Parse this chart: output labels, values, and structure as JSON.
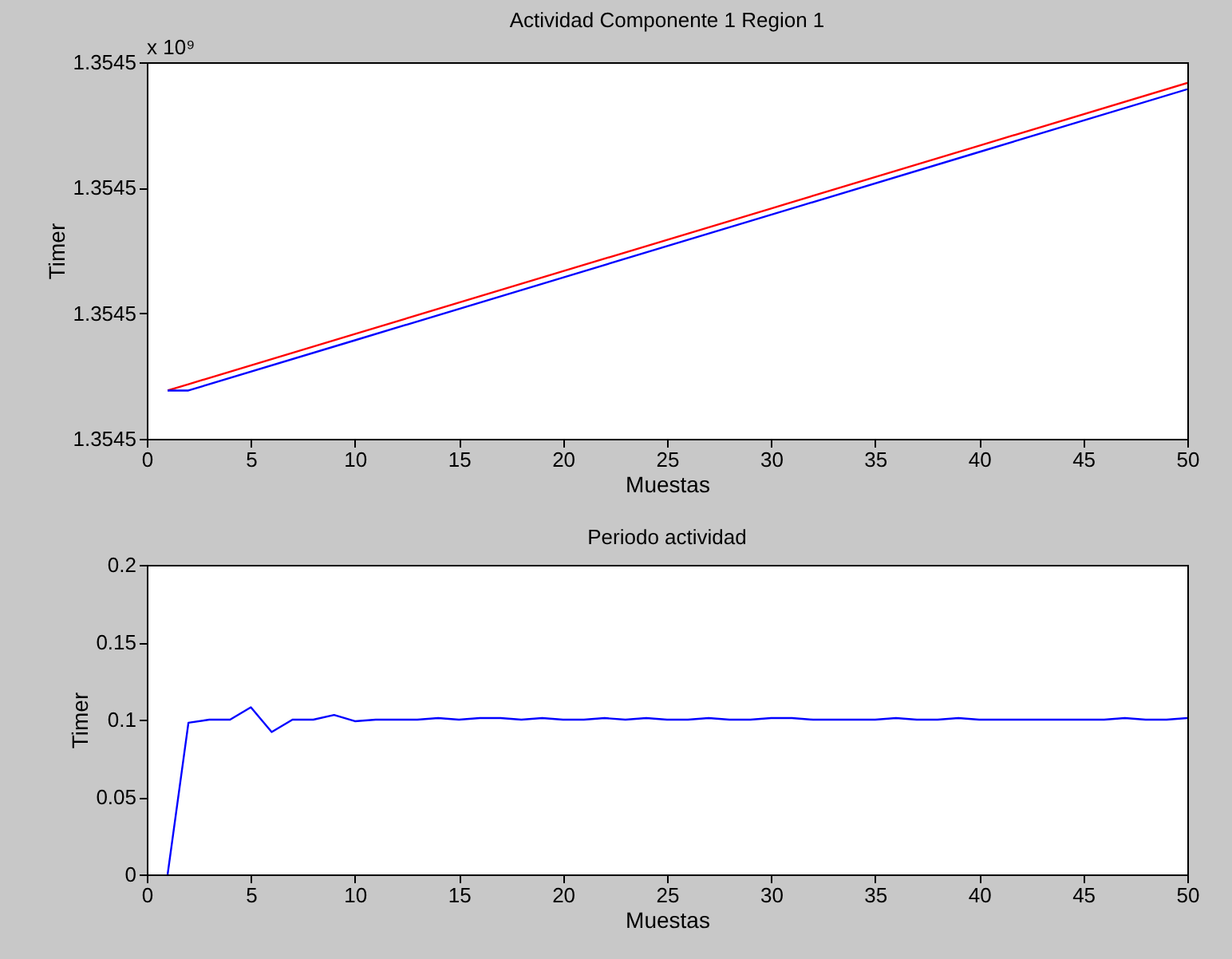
{
  "chart_data": [
    {
      "type": "line",
      "title": "Actividad Componente 1 Region 1",
      "xlabel": "Muestas",
      "ylabel": "Timer",
      "annotations": [
        "x 10⁹"
      ],
      "marker": "none",
      "line_style": "solid",
      "grid": false,
      "xlim": [
        0,
        50
      ],
      "xticks": [
        0,
        5,
        10,
        15,
        20,
        25,
        30,
        35,
        40,
        45,
        50
      ],
      "ylim": [
        1.3545,
        1.354500006
      ],
      "yticks": [
        {
          "value": 1.3545,
          "label": "1.3545"
        },
        {
          "value": 1.354500002,
          "label": "1.3545"
        },
        {
          "value": 1.354500004,
          "label": "1.3545"
        },
        {
          "value": 1.354500006,
          "label": "1.3545"
        }
      ],
      "series": [
        {
          "color": "#ff0000",
          "x": [
            1,
            2,
            10,
            20,
            30,
            40,
            50
          ],
          "values": [
            1.35450000077,
            1.35450000087,
            1.35450000167,
            1.35450000267,
            1.35450000367,
            1.35450000467,
            1.35450000567
          ]
        },
        {
          "color": "#0000ff",
          "x": [
            1,
            2,
            10,
            20,
            30,
            40,
            50
          ],
          "values": [
            1.35450000077,
            1.35450000077,
            1.35450000157,
            1.35450000257,
            1.35450000357,
            1.35450000457,
            1.35450000557
          ]
        }
      ]
    },
    {
      "type": "line",
      "title": "Periodo actividad",
      "xlabel": "Muestas",
      "ylabel": "Timer",
      "marker": "none",
      "line_style": "solid",
      "grid": false,
      "xlim": [
        0,
        50
      ],
      "xticks": [
        0,
        5,
        10,
        15,
        20,
        25,
        30,
        35,
        40,
        45,
        50
      ],
      "ylim": [
        0,
        0.2
      ],
      "yticks": [
        0,
        0.05,
        0.1,
        0.15,
        0.2
      ],
      "x": [
        1,
        2,
        3,
        4,
        5,
        6,
        7,
        8,
        9,
        10,
        11,
        12,
        13,
        14,
        15,
        16,
        17,
        18,
        19,
        20,
        21,
        22,
        23,
        24,
        25,
        26,
        27,
        28,
        29,
        30,
        31,
        32,
        33,
        34,
        35,
        36,
        37,
        38,
        39,
        40,
        41,
        42,
        43,
        44,
        45,
        46,
        47,
        48,
        49,
        50
      ],
      "series": [
        {
          "color": "#0000ff",
          "values": [
            0,
            0.098,
            0.1,
            0.1,
            0.108,
            0.092,
            0.1,
            0.1,
            0.103,
            0.099,
            0.1,
            0.1,
            0.1,
            0.101,
            0.1,
            0.101,
            0.101,
            0.1,
            0.101,
            0.1,
            0.1,
            0.101,
            0.1,
            0.101,
            0.1,
            0.1,
            0.101,
            0.1,
            0.1,
            0.101,
            0.101,
            0.1,
            0.1,
            0.1,
            0.1,
            0.101,
            0.1,
            0.1,
            0.101,
            0.1,
            0.1,
            0.1,
            0.1,
            0.1,
            0.1,
            0.1,
            0.101,
            0.1,
            0.1,
            0.101
          ]
        }
      ]
    }
  ]
}
